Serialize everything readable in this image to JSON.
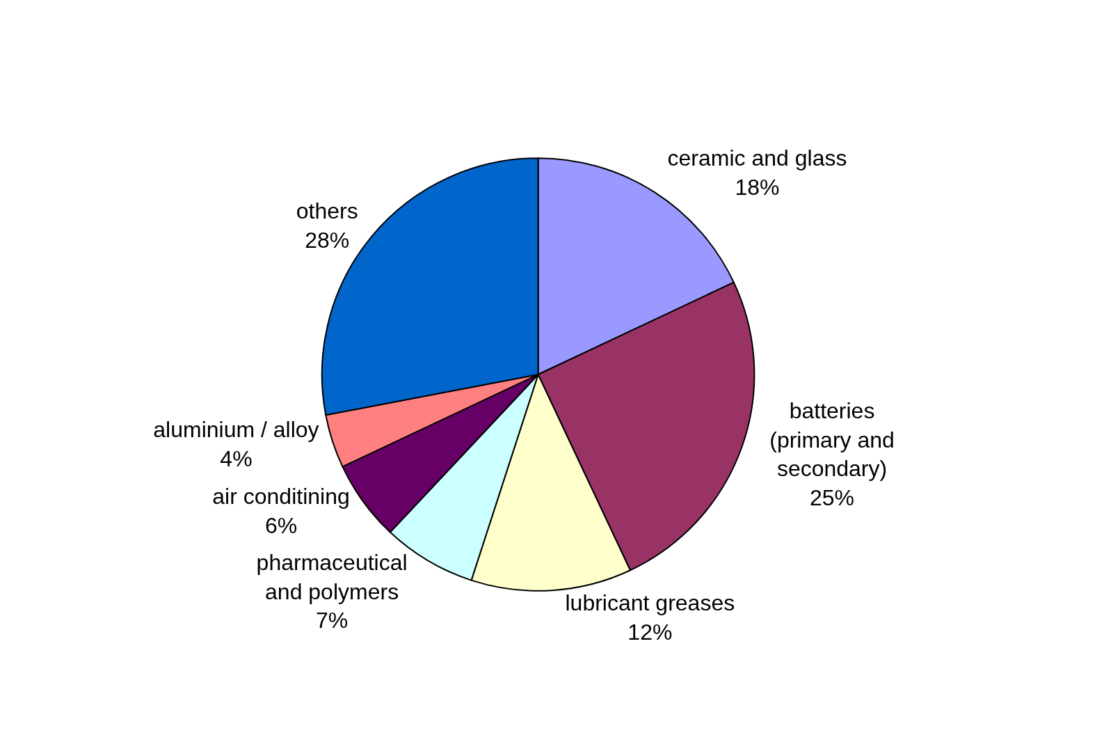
{
  "chart_data": {
    "type": "pie",
    "categories": [
      "ceramic and glass",
      "batteries (primary and secondary)",
      "lubricant greases",
      "pharmaceutical and polymers",
      "air conditining",
      "aluminium / alloy",
      "others"
    ],
    "values": [
      18,
      25,
      12,
      7,
      6,
      4,
      28
    ],
    "value_labels": [
      "18%",
      "25%",
      "12%",
      "7%",
      "6%",
      "4%",
      "28%"
    ],
    "colors": [
      "#9999ff",
      "#993366",
      "#ffffcc",
      "#ccffff",
      "#660066",
      "#ff8080",
      "#0066cc"
    ],
    "legend": false
  }
}
